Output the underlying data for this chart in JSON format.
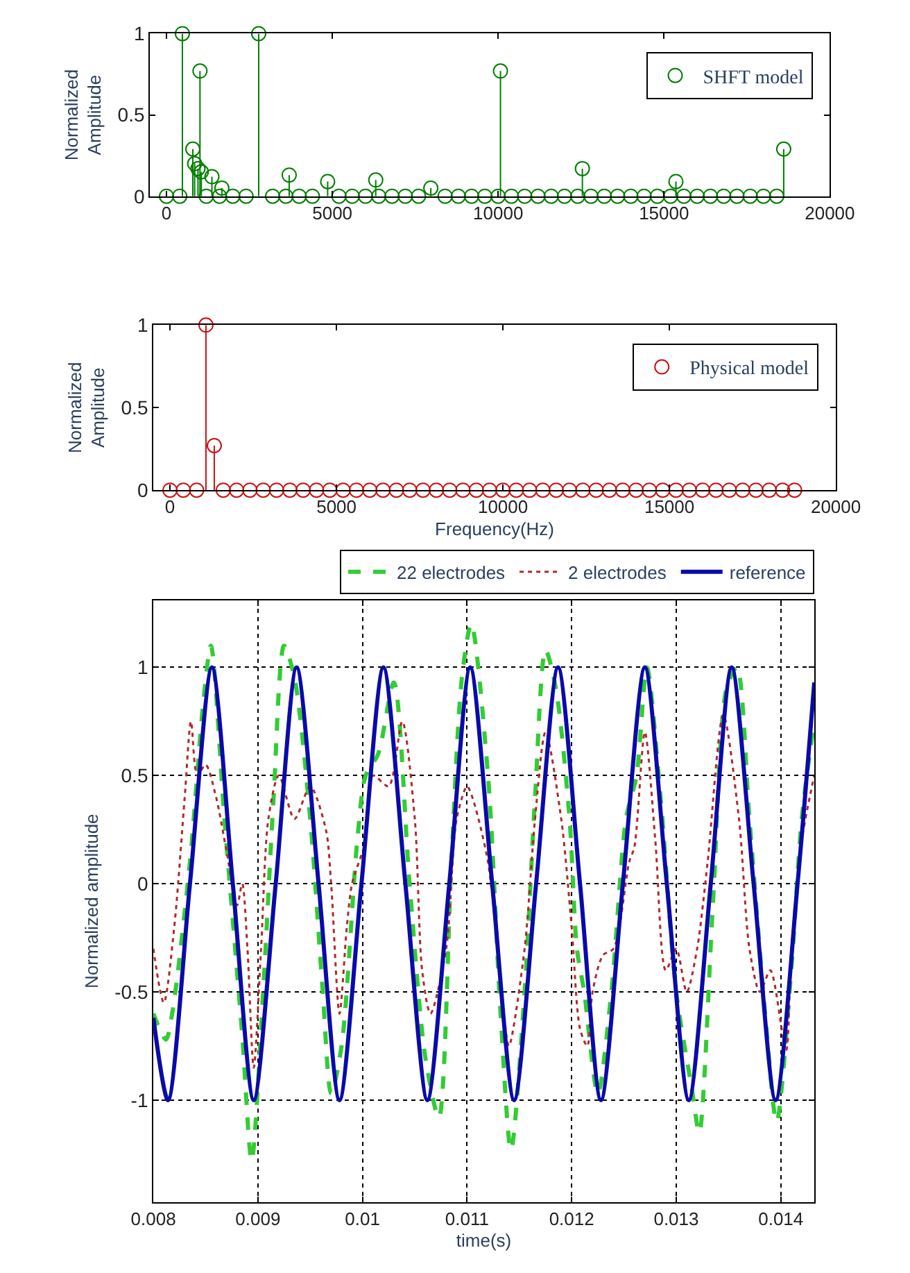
{
  "chart_data": [
    {
      "type": "lollipop",
      "ylabel": "Normalized\nAmplitude",
      "xlim": [
        -500,
        20000
      ],
      "xticks": [
        0,
        5000,
        10000,
        15000,
        20000
      ],
      "ylim": [
        0,
        1
      ],
      "yticks": [
        0,
        0.5,
        1
      ],
      "legend": "top right",
      "marker": "circle",
      "series": [
        {
          "name": "SHFT model",
          "color": "#007f00",
          "x": [
            0,
            400,
            480,
            794,
            850,
            950,
            1010,
            1050,
            1200,
            1370,
            1600,
            1670,
            2000,
            2400,
            2780,
            3200,
            3600,
            3700,
            4000,
            4400,
            4860,
            5200,
            5600,
            6000,
            6310,
            6400,
            6800,
            7200,
            7600,
            7970,
            8400,
            8800,
            9200,
            9600,
            10000,
            10070,
            10400,
            10800,
            11200,
            11600,
            12000,
            12400,
            12540,
            12800,
            13200,
            13600,
            14000,
            14400,
            14800,
            15200,
            15360,
            15600,
            16000,
            16400,
            16800,
            17200,
            17600,
            18000,
            18400,
            18610
          ],
          "values": [
            0,
            0,
            1,
            0.29,
            0.2,
            0.17,
            0.77,
            0.15,
            0,
            0.12,
            0,
            0.05,
            0,
            0,
            1,
            0,
            0,
            0.13,
            0,
            0,
            0.09,
            0,
            0,
            0,
            0.1,
            0,
            0,
            0,
            0,
            0.05,
            0,
            0,
            0,
            0,
            0,
            0.77,
            0,
            0,
            0,
            0,
            0,
            0,
            0.17,
            0,
            0,
            0,
            0,
            0,
            0,
            0,
            0.09,
            0,
            0,
            0,
            0,
            0,
            0,
            0,
            0,
            0.29
          ]
        }
      ]
    },
    {
      "type": "lollipop",
      "ylabel": "Normalized\nAmplitude",
      "xlabel": "Frequency(Hz)",
      "xlim": [
        -500,
        20000
      ],
      "xticks": [
        0,
        5000,
        10000,
        15000,
        20000
      ],
      "ylim": [
        0,
        1
      ],
      "yticks": [
        0,
        0.5,
        1
      ],
      "legend": "top right",
      "marker": "circle",
      "series": [
        {
          "name": "Physical model",
          "color": "#cc1010",
          "x": [
            0,
            400,
            800,
            1080,
            1330,
            1600,
            2000,
            2400,
            2800,
            3200,
            3600,
            4000,
            4400,
            4800,
            5200,
            5600,
            6000,
            6400,
            6800,
            7200,
            7600,
            8000,
            8400,
            8800,
            9200,
            9600,
            10000,
            10400,
            10800,
            11200,
            11600,
            12000,
            12400,
            12800,
            13200,
            13600,
            14000,
            14400,
            14800,
            15200,
            15600,
            16000,
            16400,
            16800,
            17200,
            17600,
            18000,
            18400,
            18760
          ],
          "values": [
            0,
            0,
            0,
            1,
            0.27,
            0,
            0,
            0,
            0,
            0,
            0,
            0,
            0,
            0,
            0,
            0,
            0,
            0,
            0,
            0,
            0,
            0,
            0,
            0,
            0,
            0,
            0,
            0,
            0,
            0,
            0,
            0,
            0,
            0,
            0,
            0,
            0,
            0,
            0,
            0,
            0,
            0,
            0,
            0,
            0,
            0,
            0,
            0,
            0
          ]
        }
      ]
    },
    {
      "type": "line",
      "xlabel": "time(s)",
      "ylabel": "Normalized amplitude",
      "xlim": [
        0.008,
        0.01432
      ],
      "xticks": [
        0.008,
        0.009,
        0.01,
        0.011,
        0.012,
        0.013,
        0.014
      ],
      "ylim": [
        -1.47,
        1.31
      ],
      "yticks": [
        -1,
        -0.5,
        0,
        0.5,
        1
      ],
      "grid": true,
      "legend": "top right",
      "marker": "none",
      "series": [
        {
          "name": "22 electrodes",
          "color": "#33cc33",
          "line_style": "dashed",
          "x": [
            0.008,
            0.00812,
            0.00818,
            0.00835,
            0.00848,
            0.00855,
            0.00868,
            0.00885,
            0.00894,
            0.00905,
            0.00915,
            0.00925,
            0.00935,
            0.0095,
            0.00962,
            0.0097,
            0.0098,
            0.00995,
            0.01003,
            0.01015,
            0.0103,
            0.01045,
            0.0106,
            0.01073,
            0.01085,
            0.01095,
            0.01104,
            0.0112,
            0.01132,
            0.01142,
            0.01155,
            0.01165,
            0.01175,
            0.01185,
            0.01198,
            0.01205,
            0.01212,
            0.01225,
            0.01238,
            0.01252,
            0.01262,
            0.01272,
            0.01285,
            0.013,
            0.01315,
            0.01322,
            0.01335,
            0.01348,
            0.01358,
            0.0137,
            0.01385,
            0.01396,
            0.0141,
            0.0142,
            0.01432
          ],
          "values": [
            -0.6,
            -0.72,
            -0.6,
            0.1,
            0.85,
            1.1,
            0.3,
            -0.7,
            -1.28,
            -0.5,
            0.4,
            1.1,
            0.95,
            0.3,
            -0.5,
            -0.97,
            -0.75,
            0.2,
            0.5,
            0.6,
            0.93,
            0.0,
            -0.8,
            -1.08,
            0.1,
            0.95,
            1.2,
            0.5,
            -0.6,
            -1.23,
            -0.5,
            0.4,
            1.08,
            0.9,
            0.3,
            -0.3,
            -0.5,
            -0.97,
            -0.5,
            0.3,
            0.5,
            1.0,
            0.4,
            -0.5,
            -0.95,
            -1.15,
            -0.1,
            0.9,
            1.0,
            0.3,
            -0.6,
            -1.1,
            -0.4,
            0.3,
            0.75
          ]
        },
        {
          "name": "2 electrodes",
          "color": "#b02a2a",
          "line_style": "dotted",
          "x": [
            0.008,
            0.0081,
            0.0082,
            0.0083,
            0.00836,
            0.00842,
            0.0085,
            0.0086,
            0.0087,
            0.0088,
            0.00885,
            0.0089,
            0.00896,
            0.00903,
            0.0091,
            0.0092,
            0.00935,
            0.0095,
            0.00965,
            0.0097,
            0.00978,
            0.00985,
            0.0099,
            0.01003,
            0.0101,
            0.01025,
            0.01038,
            0.0105,
            0.01057,
            0.01065,
            0.0108,
            0.0109,
            0.011,
            0.01105,
            0.0112,
            0.01135,
            0.0114,
            0.01155,
            0.01165,
            0.01175,
            0.0119,
            0.012,
            0.01208,
            0.01215,
            0.0122,
            0.0123,
            0.0124,
            0.01255,
            0.0126,
            0.0127,
            0.0128,
            0.0129,
            0.013,
            0.0131,
            0.0132,
            0.0133,
            0.01345,
            0.0136,
            0.0137,
            0.0138,
            0.0139,
            0.01405,
            0.0141,
            0.0142,
            0.01432
          ],
          "values": [
            -0.3,
            -0.55,
            -0.2,
            0.4,
            0.75,
            0.5,
            0.55,
            0.4,
            0.15,
            -0.1,
            0.0,
            -0.3,
            -0.85,
            -0.3,
            0.3,
            0.5,
            0.3,
            0.45,
            0.25,
            0.0,
            -0.6,
            -0.2,
            0.0,
            0.2,
            0.5,
            0.45,
            0.75,
            0.3,
            -0.4,
            -0.6,
            -0.3,
            0.3,
            0.45,
            0.4,
            0.1,
            -0.6,
            -0.75,
            -0.3,
            0.3,
            0.7,
            0.3,
            -0.2,
            -0.67,
            -0.75,
            -0.5,
            -0.33,
            -0.3,
            0.1,
            0.17,
            0.7,
            0.2,
            -0.4,
            -0.3,
            -0.5,
            -0.3,
            0.1,
            0.78,
            0.3,
            -0.3,
            -0.5,
            -0.4,
            -0.77,
            -0.3,
            0.2,
            0.5
          ]
        },
        {
          "name": "reference",
          "color": "#0a0aaa",
          "line_style": "solid",
          "x": [
            0.008,
            0.00814,
            0.00835,
            0.00856,
            0.00876,
            0.00896,
            0.00917,
            0.00937,
            0.00958,
            0.00978,
            0.00999,
            0.0102,
            0.01041,
            0.01062,
            0.01083,
            0.01103,
            0.01124,
            0.01145,
            0.01166,
            0.01187,
            0.01208,
            0.01228,
            0.01249,
            0.0127,
            0.01291,
            0.01312,
            0.01333,
            0.01353,
            0.01374,
            0.01395,
            0.01416,
            0.01432
          ],
          "values": [
            -0.62,
            -1,
            0,
            1,
            0,
            -1,
            0,
            1,
            0,
            -1,
            0,
            1,
            0,
            -1,
            0,
            1,
            0,
            -1,
            0,
            1,
            0,
            -1,
            0,
            1,
            0,
            -1,
            0,
            1,
            0,
            -1,
            0,
            0.93
          ]
        }
      ]
    }
  ]
}
